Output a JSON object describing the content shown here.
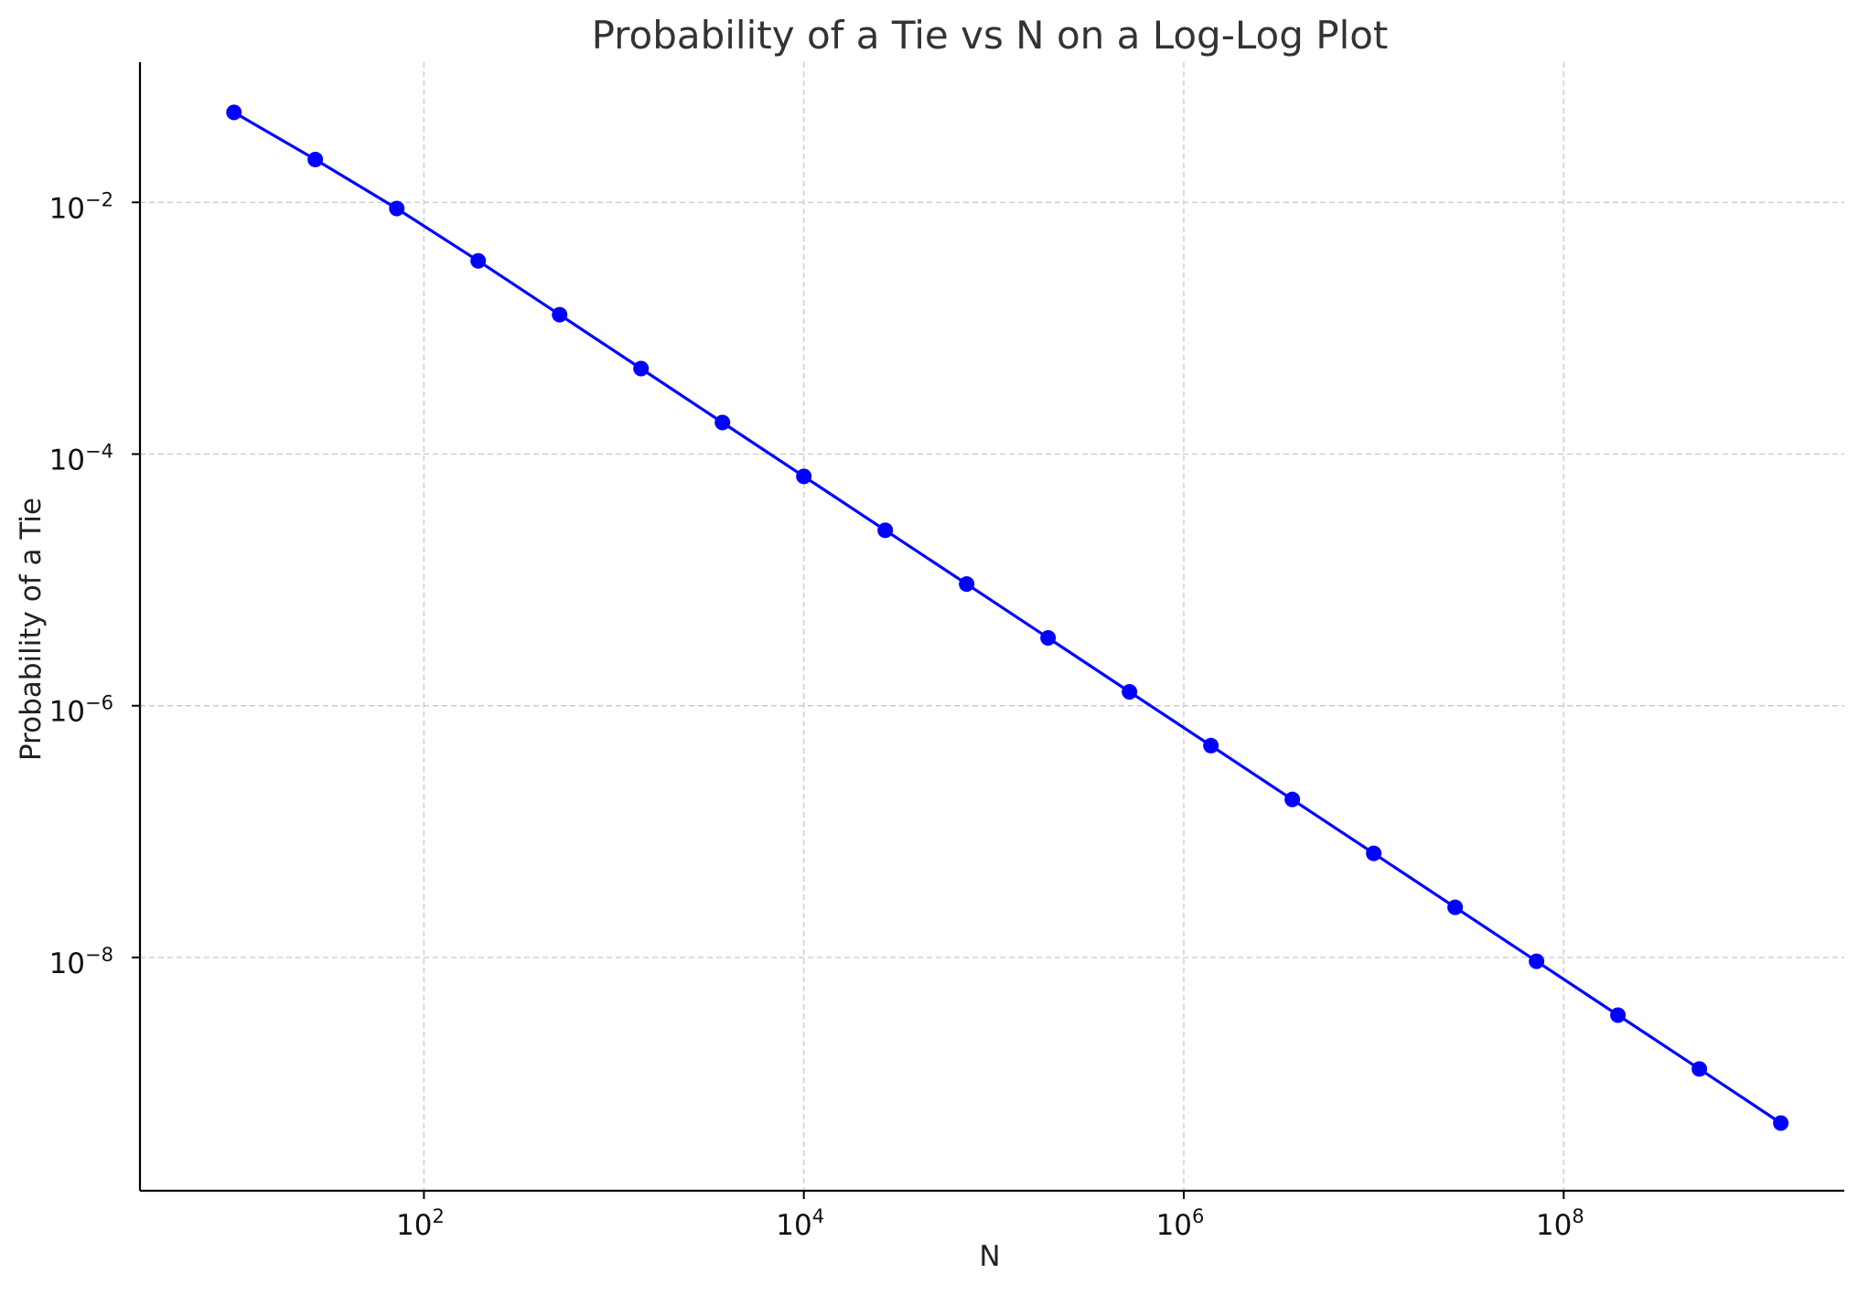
{
  "chart_data": {
    "type": "line",
    "title": "Probability of a Tie vs N on a Log-Log Plot",
    "xlabel": "N",
    "ylabel": "Probability of a Tie",
    "xscale": "log",
    "yscale": "log",
    "xlim": [
      3.2,
      3000000000
    ],
    "ylim": [
      1.4e-10,
      0.13
    ],
    "grid": true,
    "legend": "none",
    "x_ticks": [
      {
        "value": 100,
        "base": "10",
        "exp": "2"
      },
      {
        "value": 10000,
        "base": "10",
        "exp": "4"
      },
      {
        "value": 1000000,
        "base": "10",
        "exp": "6"
      },
      {
        "value": 100000000,
        "base": "10",
        "exp": "8"
      }
    ],
    "y_ticks": [
      {
        "value": 0.01,
        "base": "10",
        "exp": "−2"
      },
      {
        "value": 0.0001,
        "base": "10",
        "exp": "−4"
      },
      {
        "value": 1e-06,
        "base": "10",
        "exp": "−6"
      },
      {
        "value": 1e-08,
        "base": "10",
        "exp": "−8"
      }
    ],
    "series": [
      {
        "color": "#0000ff",
        "x": [
          10,
          26.8,
          71.97,
          193.07,
          517.95,
          1389.5,
          3727.59,
          10000,
          26826.96,
          71968.57,
          193069.77,
          517947.47,
          1389495.49,
          3727593.72,
          10000000,
          26826957.95,
          71968567.3,
          193069772.89,
          517947467.92,
          1389495494.37
        ],
        "y": [
          0.0519,
          0.0219,
          0.00894,
          0.00343,
          0.00128,
          0.000478,
          0.000178,
          6.65e-05,
          2.48e-05,
          9.27e-06,
          3.46e-06,
          1.29e-06,
          4.82e-07,
          1.8e-07,
          6.71e-08,
          2.5e-08,
          9.32e-09,
          3.48e-09,
          1.3e-09,
          4.83e-10
        ]
      }
    ]
  }
}
